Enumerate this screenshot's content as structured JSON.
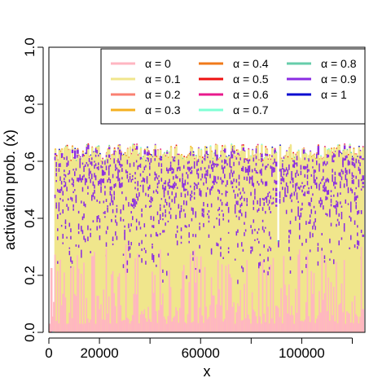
{
  "chart_data": {
    "type": "scatter",
    "xlabel": "x",
    "ylabel": "activation prob. (x)",
    "xlim": [
      0,
      125000
    ],
    "ylim": [
      0,
      1
    ],
    "x_ticks": [
      0,
      20000,
      40000,
      60000,
      80000,
      100000,
      120000
    ],
    "x_tick_labels": [
      "0",
      "20000",
      "",
      "60000",
      "",
      "100000",
      ""
    ],
    "y_ticks": [
      0.0,
      0.2,
      0.4,
      0.6,
      0.8,
      1.0
    ],
    "y_tick_labels": [
      "0.0",
      "0.2",
      "0.4",
      "0.6",
      "0.8",
      "1.0"
    ],
    "grid": false,
    "legend_position": "top-right",
    "series": [
      {
        "name": "α = 0",
        "color": "#ffb6c1",
        "values_range": [
          0.0,
          0.3
        ]
      },
      {
        "name": "α = 0.1",
        "color": "#f0e68c",
        "values_range": [
          0.0,
          0.66
        ]
      },
      {
        "name": "α = 0.2",
        "color": "#fa8072"
      },
      {
        "name": "α = 0.3",
        "color": "#f4b020"
      },
      {
        "name": "α = 0.4",
        "color": "#f07a1a"
      },
      {
        "name": "α = 0.5",
        "color": "#ee1111"
      },
      {
        "name": "α = 0.6",
        "color": "#e8198c"
      },
      {
        "name": "α = 0.7",
        "color": "#7fffd4"
      },
      {
        "name": "α = 0.8",
        "color": "#66cdaa"
      },
      {
        "name": "α = 0.9",
        "color": "#8a2be2",
        "values_range": [
          0.2,
          0.67
        ]
      },
      {
        "name": "α = 1",
        "color": "#0a0ad0"
      }
    ]
  }
}
